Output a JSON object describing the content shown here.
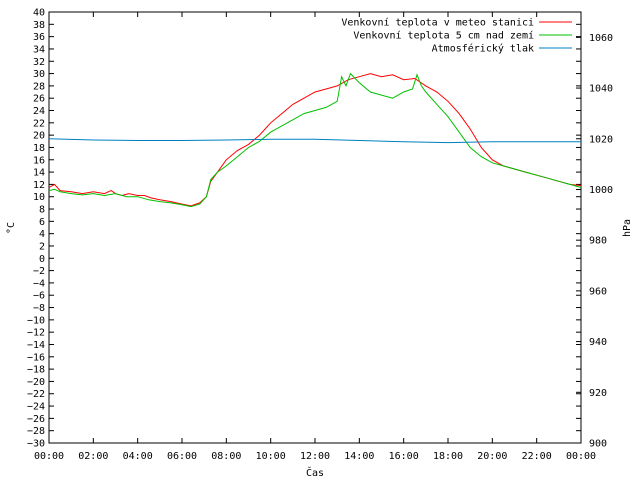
{
  "chart_data": {
    "type": "line",
    "xlabel": "Čas",
    "ylabel": "°C",
    "y2label": "hPa",
    "x_ticks": [
      "00:00",
      "02:00",
      "04:00",
      "06:00",
      "08:00",
      "10:00",
      "12:00",
      "14:00",
      "16:00",
      "18:00",
      "20:00",
      "22:00",
      "00:00"
    ],
    "xlim": [
      0,
      24
    ],
    "ylim": [
      -30,
      40
    ],
    "y_ticks": [
      -30,
      -28,
      -26,
      -24,
      -22,
      -20,
      -18,
      -16,
      -14,
      -12,
      -10,
      -8,
      -6,
      -4,
      -2,
      0,
      2,
      4,
      6,
      8,
      10,
      12,
      14,
      16,
      18,
      20,
      22,
      24,
      26,
      28,
      30,
      32,
      34,
      36,
      38,
      40
    ],
    "y2lim": [
      900,
      1070
    ],
    "y2_ticks": [
      900,
      920,
      940,
      960,
      980,
      1000,
      1020,
      1040,
      1060
    ],
    "legend_position": "top-right",
    "series": [
      {
        "name": "Venkovní teplota v meteo stanici",
        "color": "#ff0000",
        "axis": "left",
        "x": [
          0,
          0.25,
          0.5,
          1,
          1.5,
          2,
          2.5,
          2.8,
          3,
          3.3,
          3.6,
          4,
          4.3,
          4.6,
          5,
          5.5,
          6,
          6.4,
          6.8,
          7.1,
          7.3,
          7.6,
          8,
          8.5,
          9,
          9.5,
          10,
          10.5,
          11,
          11.5,
          12,
          12.5,
          13,
          13.5,
          14,
          14.5,
          15,
          15.5,
          16,
          16.5,
          17,
          17.5,
          18,
          18.5,
          19,
          19.5,
          20,
          20.5,
          21,
          21.5,
          22,
          22.5,
          23,
          23.5,
          24
        ],
        "y": [
          11.5,
          12,
          11,
          10.8,
          10.5,
          10.8,
          10.5,
          11,
          10.5,
          10.2,
          10.5,
          10.2,
          10.2,
          9.8,
          9.5,
          9.2,
          8.8,
          8.5,
          9,
          10,
          12.5,
          14,
          16,
          17.5,
          18.5,
          20,
          22,
          23.5,
          25,
          26,
          27,
          27.5,
          28,
          29,
          29.5,
          30,
          29.5,
          29.8,
          29,
          29.2,
          28,
          27,
          25.5,
          23.5,
          21,
          18,
          16,
          15,
          14.5,
          14,
          13.5,
          13,
          12.5,
          12,
          11.8
        ]
      },
      {
        "name": "Venkovní teplota 5 cm nad zemí",
        "color": "#00c000",
        "axis": "left",
        "x": [
          0,
          0.25,
          0.5,
          1,
          1.5,
          2,
          2.5,
          3,
          3.5,
          4,
          4.5,
          5,
          5.5,
          6,
          6.4,
          6.8,
          7.1,
          7.3,
          7.6,
          8,
          8.5,
          9,
          9.5,
          10,
          10.5,
          11,
          11.5,
          12,
          12.5,
          13,
          13.2,
          13.4,
          13.6,
          14,
          14.5,
          15,
          15.5,
          16,
          16.4,
          16.6,
          16.8,
          17,
          17.5,
          18,
          18.5,
          19,
          19.5,
          20,
          20.5,
          21,
          21.5,
          22,
          22.5,
          23,
          23.5,
          24
        ],
        "y": [
          11,
          11.2,
          10.8,
          10.5,
          10.3,
          10.5,
          10.2,
          10.5,
          10,
          10,
          9.5,
          9.2,
          9,
          8.7,
          8.4,
          8.8,
          10,
          12.8,
          14,
          15,
          16.5,
          18,
          19,
          20.5,
          21.5,
          22.5,
          23.5,
          24,
          24.5,
          25.5,
          29.5,
          28,
          30,
          28.5,
          27,
          26.5,
          26,
          27,
          27.5,
          29.8,
          28,
          27,
          25,
          23,
          20.5,
          18,
          16.5,
          15.5,
          15,
          14.5,
          14,
          13.5,
          13,
          12.5,
          12,
          11.5
        ]
      },
      {
        "name": "Atmosférický tlak",
        "color": "#0080c0",
        "axis": "right",
        "x": [
          0,
          2,
          4,
          6,
          8,
          10,
          12,
          14,
          16,
          18,
          20,
          22,
          24
        ],
        "y": [
          1020,
          1019.5,
          1019.3,
          1019.3,
          1019.5,
          1019.8,
          1019.8,
          1019.3,
          1018.8,
          1018.5,
          1018.8,
          1018.8,
          1018.8
        ]
      }
    ]
  }
}
